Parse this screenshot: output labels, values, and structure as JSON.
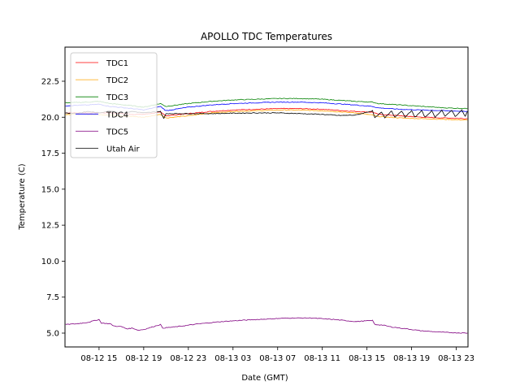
{
  "chart_data": {
    "type": "line",
    "title": "APOLLO TDC Temperatures",
    "xlabel": "Date (GMT)",
    "ylabel": "Temperature (C)",
    "x_unit": "hours since 08-12 00:00 GMT",
    "xlim": [
      11.95,
      48.05
    ],
    "ylim": [
      4.04,
      24.87
    ],
    "x_ticks": [
      {
        "value": 15,
        "label": "08-12 15"
      },
      {
        "value": 19,
        "label": "08-12 19"
      },
      {
        "value": 23,
        "label": "08-12 23"
      },
      {
        "value": 27,
        "label": "08-13 03"
      },
      {
        "value": 31,
        "label": "08-13 07"
      },
      {
        "value": 35,
        "label": "08-13 11"
      },
      {
        "value": 39,
        "label": "08-13 15"
      },
      {
        "value": 43,
        "label": "08-13 19"
      },
      {
        "value": 47,
        "label": "08-13 23"
      }
    ],
    "y_ticks": [
      {
        "value": 5.0,
        "label": "5.0"
      },
      {
        "value": 7.5,
        "label": "7.5"
      },
      {
        "value": 10.0,
        "label": "10.0"
      },
      {
        "value": 12.5,
        "label": "12.5"
      },
      {
        "value": 15.0,
        "label": "15.0"
      },
      {
        "value": 17.5,
        "label": "17.5"
      },
      {
        "value": 20.0,
        "label": "20.0"
      },
      {
        "value": 22.5,
        "label": "22.5"
      }
    ],
    "grid": false,
    "legend_position": "top-left",
    "series": [
      {
        "name": "TDC1",
        "color": "#ff0000",
        "x": [
          12,
          14,
          16,
          18,
          19,
          20.5,
          21,
          23,
          25,
          27,
          29,
          31,
          33,
          35,
          37,
          38,
          39.5,
          40,
          42,
          44,
          46,
          48
        ],
        "y": [
          20.3,
          20.3,
          20.3,
          20.2,
          20.2,
          20.35,
          20.1,
          20.25,
          20.4,
          20.5,
          20.55,
          20.6,
          20.6,
          20.55,
          20.45,
          20.4,
          20.35,
          20.2,
          20.1,
          20.0,
          19.95,
          19.9
        ]
      },
      {
        "name": "TDC2",
        "color": "#ffa500",
        "x": [
          12,
          14,
          16,
          18,
          19,
          20.5,
          21,
          23,
          25,
          27,
          29,
          31,
          33,
          35,
          37,
          38,
          39.5,
          40,
          42,
          44,
          46,
          48
        ],
        "y": [
          20.2,
          20.2,
          20.15,
          20.05,
          20.0,
          20.2,
          19.95,
          20.1,
          20.3,
          20.4,
          20.45,
          20.5,
          20.5,
          20.45,
          20.35,
          20.3,
          20.15,
          20.05,
          19.95,
          19.9,
          19.85,
          19.8
        ]
      },
      {
        "name": "TDC3",
        "color": "#008000",
        "x": [
          12,
          14,
          15,
          16,
          18,
          19,
          20.5,
          21,
          23,
          25,
          27,
          29,
          31,
          33,
          35,
          37,
          38,
          39.5,
          40,
          42,
          44,
          46,
          48
        ],
        "y": [
          21.0,
          21.05,
          21.1,
          20.95,
          20.8,
          20.7,
          20.95,
          20.75,
          20.95,
          21.1,
          21.2,
          21.25,
          21.3,
          21.3,
          21.25,
          21.15,
          21.1,
          21.05,
          20.95,
          20.85,
          20.75,
          20.65,
          20.6
        ]
      },
      {
        "name": "TDC4",
        "color": "#0000ff",
        "x": [
          12,
          14,
          15,
          16,
          18,
          19,
          20.5,
          21,
          23,
          25,
          27,
          29,
          31,
          33,
          35,
          37,
          38,
          39.5,
          40,
          42,
          44,
          46,
          48
        ],
        "y": [
          20.8,
          20.85,
          20.9,
          20.75,
          20.6,
          20.5,
          20.75,
          20.45,
          20.7,
          20.85,
          20.95,
          21.0,
          21.05,
          21.05,
          21.0,
          20.9,
          20.85,
          20.75,
          20.65,
          20.55,
          20.5,
          20.45,
          20.4
        ]
      },
      {
        "name": "TDC5",
        "color": "#800080",
        "x": [
          12,
          13,
          14,
          15,
          15.2,
          16,
          16.3,
          17,
          17.5,
          18,
          18.5,
          19,
          20.5,
          20.7,
          22,
          24,
          26,
          28,
          30,
          32,
          34,
          36,
          38,
          39.5,
          39.7,
          40.5,
          41,
          42,
          43,
          44,
          46,
          48
        ],
        "y": [
          5.6,
          5.65,
          5.75,
          5.95,
          5.7,
          5.65,
          5.5,
          5.45,
          5.3,
          5.35,
          5.2,
          5.25,
          5.6,
          5.35,
          5.45,
          5.65,
          5.8,
          5.9,
          5.98,
          6.05,
          6.05,
          5.95,
          5.8,
          5.88,
          5.6,
          5.55,
          5.45,
          5.35,
          5.25,
          5.15,
          5.05,
          5.0
        ]
      },
      {
        "name": "Utah Air",
        "color": "#000000",
        "x": [
          12,
          13,
          14,
          15,
          16,
          17,
          18,
          19,
          20.5,
          20.8,
          21,
          23,
          25,
          27,
          29,
          31,
          33,
          35,
          36.5,
          38,
          39,
          39.5,
          39.7,
          40.3,
          40.6,
          41.2,
          41.5,
          42.1,
          42.4,
          43.0,
          43.3,
          43.9,
          44.2,
          44.8,
          45.1,
          45.7,
          46.0,
          46.6,
          46.9,
          47.5,
          47.8,
          48
        ],
        "y": [
          20.3,
          20.25,
          20.4,
          20.3,
          20.45,
          20.3,
          20.4,
          20.3,
          20.4,
          19.9,
          20.25,
          20.25,
          20.25,
          20.28,
          20.3,
          20.3,
          20.25,
          20.2,
          20.12,
          20.15,
          20.35,
          20.45,
          19.95,
          20.35,
          19.95,
          20.45,
          20.0,
          20.45,
          20.0,
          20.45,
          20.0,
          20.45,
          20.0,
          20.45,
          20.0,
          20.5,
          20.05,
          20.5,
          20.05,
          20.5,
          20.05,
          20.4
        ]
      }
    ]
  }
}
